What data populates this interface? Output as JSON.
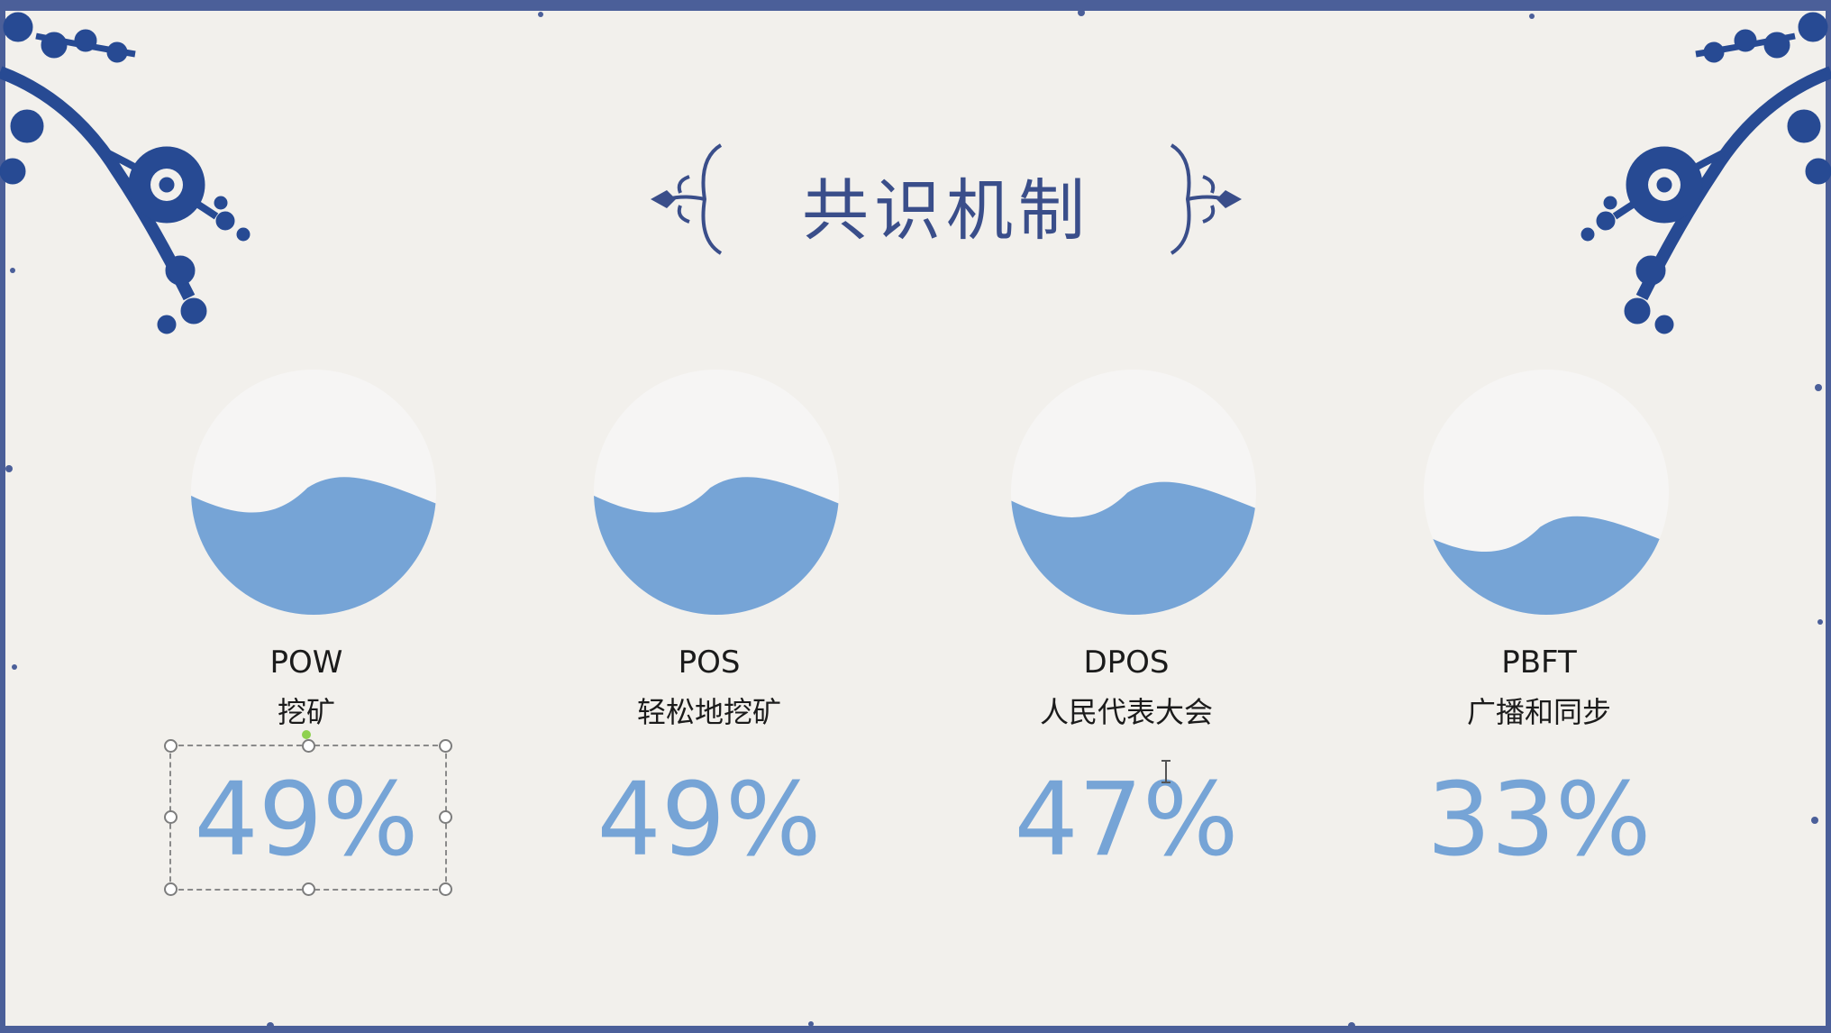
{
  "slide": {
    "title": "共识机制",
    "colors": {
      "background": "#f2f0ec",
      "accent_blue": "#3a4e8a",
      "wave": "#76a4d6",
      "circle": "#f6f5f4"
    }
  },
  "decorations": {
    "corner_icons": [
      "blue-floral-branch-icon",
      "blue-floral-branch-icon"
    ],
    "title_flourish_icons": [
      "ornate-scroll-icon",
      "ornate-scroll-icon"
    ]
  },
  "mechanisms": [
    {
      "code": "POW",
      "description": "挖矿",
      "percent_label": "49%",
      "fill_level": 0.49
    },
    {
      "code": "POS",
      "description": "轻松地挖矿",
      "percent_label": "49%",
      "fill_level": 0.49
    },
    {
      "code": "DPOS",
      "description": "人民代表大会",
      "percent_label": "47%",
      "fill_level": 0.47
    },
    {
      "code": "PBFT",
      "description": "广播和同步",
      "percent_label": "33%",
      "fill_level": 0.33
    }
  ]
}
